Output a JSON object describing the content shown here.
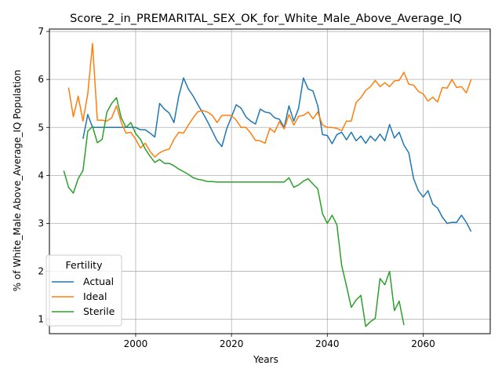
{
  "chart_data": {
    "type": "line",
    "title": "Score_2_in_PREMARITAL_SEX_OK_for_White_Male_Above_Average_IQ",
    "xlabel": "Years",
    "ylabel": "% of White_Male Above_Average_IQ Population",
    "xlim": [
      1982,
      2074
    ],
    "ylim": [
      0.7,
      7.05
    ],
    "xticks": [
      2000,
      2020,
      2040,
      2060
    ],
    "yticks": [
      1,
      2,
      3,
      4,
      5,
      6,
      7
    ],
    "grid": true,
    "legend": {
      "title": "Fertility",
      "position": "lower-left"
    },
    "series": [
      {
        "name": "Actual",
        "color": "#1f77b4",
        "x": [
          1989,
          1990,
          1991,
          1992,
          1993,
          1994,
          1995,
          1996,
          1997,
          1998,
          1999,
          2000,
          2001,
          2002,
          2003,
          2004,
          2005,
          2006,
          2007,
          2008,
          2009,
          2010,
          2011,
          2012,
          2013,
          2014,
          2015,
          2016,
          2017,
          2018,
          2019,
          2020,
          2021,
          2022,
          2023,
          2024,
          2025,
          2026,
          2027,
          2028,
          2029,
          2030,
          2031,
          2032,
          2033,
          2034,
          2035,
          2036,
          2037,
          2038,
          2039,
          2040,
          2041,
          2042,
          2043,
          2044,
          2045,
          2046,
          2047,
          2048,
          2049,
          2050,
          2051,
          2052,
          2053,
          2054,
          2055,
          2056,
          2057,
          2058,
          2059,
          2060,
          2061,
          2062,
          2063,
          2064,
          2065,
          2066,
          2067,
          2068,
          2069,
          2070
        ],
        "y": [
          4.76,
          5.27,
          5.0,
          5.0,
          5.0,
          5.0,
          5.0,
          5.0,
          5.0,
          5.0,
          5.0,
          5.0,
          4.95,
          4.95,
          4.88,
          4.8,
          5.5,
          5.38,
          5.3,
          5.1,
          5.65,
          6.03,
          5.8,
          5.65,
          5.47,
          5.3,
          5.12,
          4.92,
          4.72,
          4.6,
          4.97,
          5.22,
          5.47,
          5.4,
          5.22,
          5.13,
          5.07,
          5.38,
          5.32,
          5.3,
          5.2,
          5.17,
          5.0,
          5.45,
          5.13,
          5.4,
          6.03,
          5.8,
          5.76,
          5.45,
          4.85,
          4.83,
          4.66,
          4.85,
          4.9,
          4.74,
          4.9,
          4.72,
          4.82,
          4.67,
          4.82,
          4.72,
          4.86,
          4.72,
          5.06,
          4.78,
          4.9,
          4.63,
          4.47,
          3.93,
          3.68,
          3.55,
          3.68,
          3.4,
          3.32,
          3.13,
          3.0,
          3.02,
          3.02,
          3.17,
          3.02,
          2.83
        ]
      },
      {
        "name": "Ideal",
        "color": "#ff7f0e",
        "x": [
          1986,
          1987,
          1988,
          1989,
          1990,
          1991,
          1992,
          1993,
          1994,
          1995,
          1996,
          1997,
          1998,
          1999,
          2000,
          2001,
          2002,
          2003,
          2004,
          2005,
          2006,
          2007,
          2008,
          2009,
          2010,
          2011,
          2012,
          2013,
          2014,
          2015,
          2016,
          2017,
          2018,
          2019,
          2020,
          2021,
          2022,
          2023,
          2024,
          2025,
          2026,
          2027,
          2028,
          2029,
          2030,
          2031,
          2032,
          2033,
          2034,
          2035,
          2036,
          2037,
          2038,
          2039,
          2040,
          2041,
          2042,
          2043,
          2044,
          2045,
          2046,
          2047,
          2048,
          2049,
          2050,
          2051,
          2052,
          2053,
          2054,
          2055,
          2056,
          2057,
          2058,
          2059,
          2060,
          2061,
          2062,
          2063,
          2064,
          2065,
          2066,
          2067,
          2068,
          2069,
          2070
        ],
        "y": [
          5.83,
          5.22,
          5.65,
          5.13,
          5.7,
          6.75,
          5.15,
          5.15,
          5.13,
          5.2,
          5.45,
          5.1,
          4.88,
          4.9,
          4.75,
          4.57,
          4.67,
          4.5,
          4.38,
          4.47,
          4.52,
          4.55,
          4.75,
          4.9,
          4.88,
          5.05,
          5.2,
          5.33,
          5.35,
          5.32,
          5.25,
          5.1,
          5.25,
          5.25,
          5.25,
          5.15,
          5.0,
          5.0,
          4.88,
          4.73,
          4.72,
          4.67,
          4.98,
          4.9,
          5.12,
          4.97,
          5.27,
          5.05,
          5.23,
          5.25,
          5.32,
          5.18,
          5.32,
          5.05,
          5.0,
          5.0,
          4.98,
          4.93,
          5.13,
          5.13,
          5.52,
          5.62,
          5.77,
          5.85,
          5.98,
          5.85,
          5.93,
          5.85,
          5.97,
          5.98,
          6.15,
          5.9,
          5.88,
          5.75,
          5.7,
          5.55,
          5.63,
          5.53,
          5.83,
          5.82,
          6.0,
          5.83,
          5.85,
          5.72,
          6.0
        ]
      },
      {
        "name": "Sterile",
        "color": "#2ca02c",
        "x": [
          1985,
          1986,
          1987,
          1988,
          1989,
          1990,
          1991,
          1992,
          1993,
          1994,
          1995,
          1996,
          1997,
          1998,
          1999,
          2000,
          2001,
          2002,
          2003,
          2004,
          2005,
          2006,
          2007,
          2008,
          2009,
          2010,
          2011,
          2012,
          2013,
          2014,
          2015,
          2016,
          2017,
          2018,
          2019,
          2020,
          2021,
          2022,
          2023,
          2024,
          2025,
          2026,
          2027,
          2028,
          2029,
          2030,
          2031,
          2032,
          2033,
          2034,
          2035,
          2036,
          2037,
          2038,
          2039,
          2040,
          2041,
          2042,
          2043,
          2044,
          2045,
          2046,
          2047,
          2048,
          2049,
          2050,
          2051,
          2052,
          2053,
          2054,
          2055,
          2056
        ],
        "y": [
          4.1,
          3.75,
          3.63,
          3.93,
          4.1,
          4.92,
          5.02,
          4.68,
          4.75,
          5.32,
          5.5,
          5.62,
          5.2,
          5.0,
          5.1,
          4.87,
          4.75,
          4.55,
          4.4,
          4.27,
          4.33,
          4.25,
          4.25,
          4.2,
          4.13,
          4.08,
          4.02,
          3.95,
          3.92,
          3.9,
          3.87,
          3.87,
          3.86,
          3.86,
          3.86,
          3.86,
          3.86,
          3.86,
          3.86,
          3.86,
          3.86,
          3.86,
          3.86,
          3.86,
          3.86,
          3.86,
          3.86,
          3.95,
          3.75,
          3.8,
          3.88,
          3.93,
          3.82,
          3.72,
          3.2,
          3.0,
          3.17,
          2.97,
          2.12,
          1.7,
          1.25,
          1.4,
          1.5,
          0.85,
          0.95,
          1.02,
          1.85,
          1.72,
          2.0,
          1.18,
          1.38,
          0.88
        ]
      }
    ]
  }
}
